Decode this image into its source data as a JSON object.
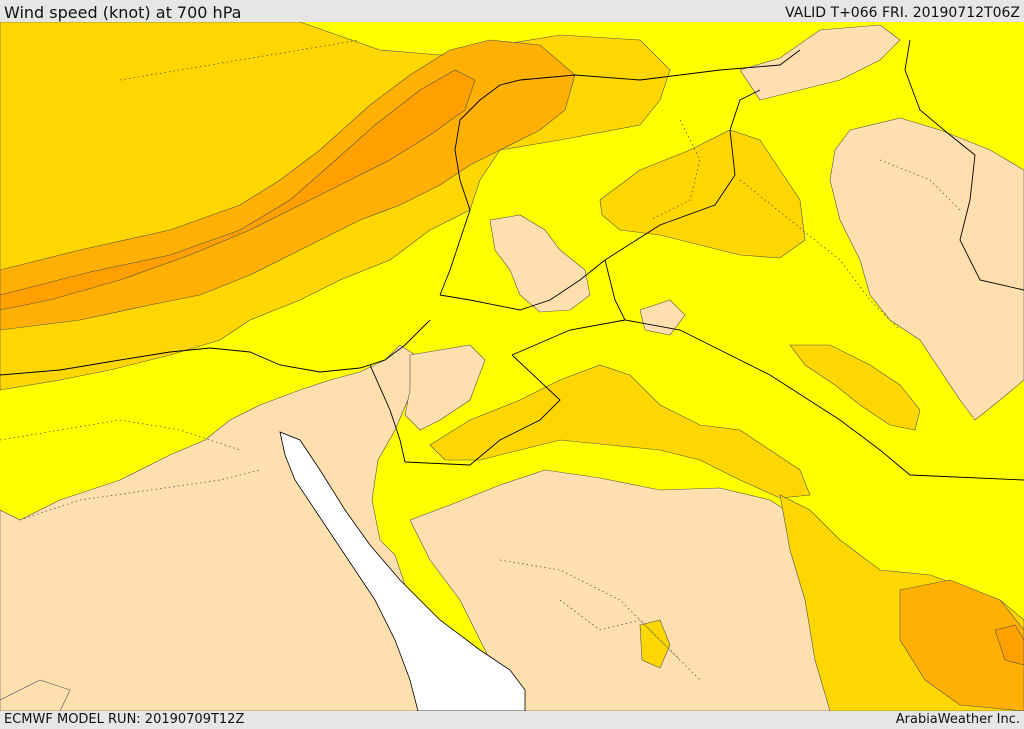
{
  "header": {
    "title": "Wind speed (knot) at 700 hPa",
    "valid": "VALID T+066 FRI. 20190712T06Z"
  },
  "footer": {
    "model_run": "ECMWF MODEL RUN: 20190709T12Z",
    "credit": "ArabiaWeather Inc."
  },
  "colors": {
    "lowest": "#ffdfae",
    "low": "#ffff00",
    "moderate": "#ffd700",
    "high": "#ffb000",
    "higher": "#ff9f00",
    "highest": "#ff8c00",
    "sea_no_data": "#ffffff",
    "border": "#000000",
    "admin_dotted": "#555555"
  }
}
